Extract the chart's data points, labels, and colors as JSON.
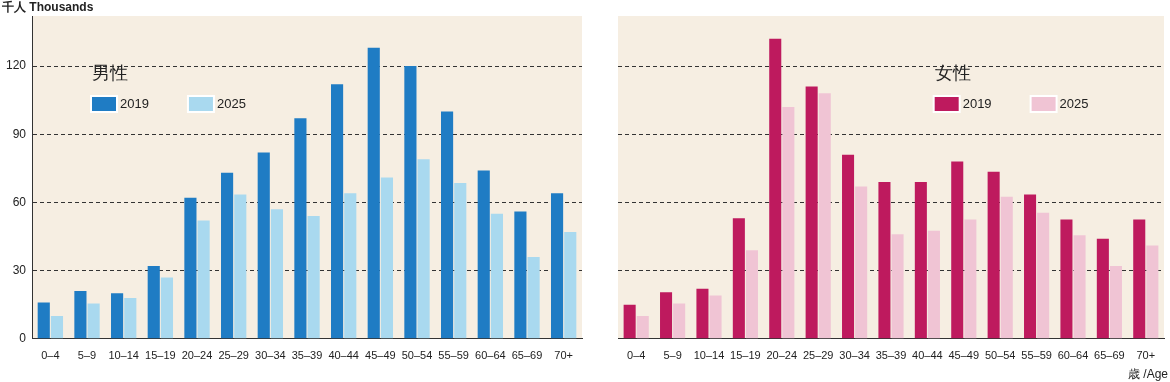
{
  "chart_data": [
    {
      "type": "bar",
      "ylabel": "千人 Thousands",
      "legend_title": "男性",
      "legend": "top left",
      "grid": "y",
      "categories": [
        "0–4",
        "5–9",
        "10–14",
        "15–19",
        "20–24",
        "25–29",
        "30–34",
        "35–39",
        "40–44",
        "45–49",
        "50–54",
        "55–59",
        "60–64",
        "65–69",
        "70+"
      ],
      "ylim": [
        0,
        142
      ],
      "yticks": [
        0,
        30,
        60,
        90,
        120
      ],
      "series": [
        {
          "name": "2019",
          "color": "#1f7cc4",
          "values": [
            16,
            21,
            20,
            32,
            62,
            73,
            82,
            97,
            112,
            128,
            120,
            100,
            74,
            56,
            64
          ]
        },
        {
          "name": "2025",
          "color": "#a9d9ef",
          "values": [
            10,
            15.5,
            18,
            27,
            52,
            63.5,
            57,
            54,
            64,
            71,
            79,
            68.5,
            55,
            36,
            47
          ]
        }
      ]
    },
    {
      "type": "bar",
      "xlabel": "歳 /Age",
      "legend_title": "女性",
      "legend": "top right",
      "grid": "y",
      "tick_labels": "x",
      "categories": [
        "0–4",
        "5–9",
        "10–14",
        "15–19",
        "20–24",
        "25–29",
        "30–34",
        "35–39",
        "40–44",
        "45–49",
        "50–54",
        "55–59",
        "60–64",
        "65–69",
        "70+"
      ],
      "ylim": [
        0,
        142
      ],
      "yticks": [
        0,
        30,
        60,
        90,
        120
      ],
      "series": [
        {
          "name": "2019",
          "color": "#be1a5e",
          "values": [
            15,
            20.5,
            22,
            53,
            132,
            111,
            81,
            69,
            69,
            78,
            73.5,
            63.5,
            52.5,
            44,
            52.5
          ]
        },
        {
          "name": "2025",
          "color": "#f0c4d4",
          "values": [
            10,
            15.5,
            19,
            39,
            102,
            108,
            67,
            46,
            47.5,
            52.5,
            62.5,
            55.5,
            45.5,
            32,
            41
          ]
        }
      ]
    }
  ]
}
